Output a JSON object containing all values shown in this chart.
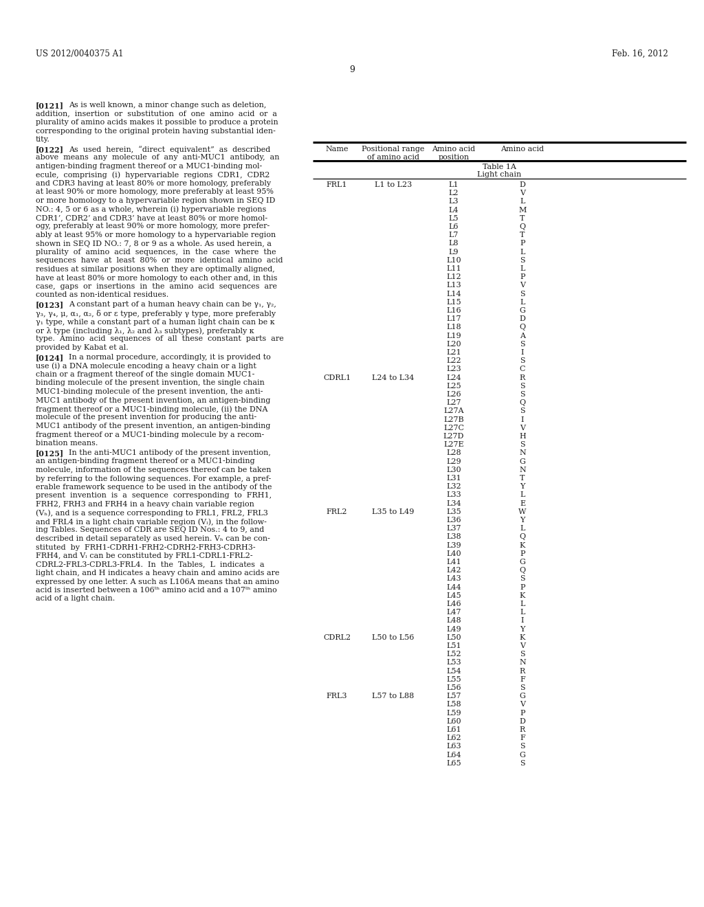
{
  "header_left": "US 2012/0040375 A1",
  "header_right": "Feb. 16, 2012",
  "page_number": "9",
  "background_color": "#ffffff",
  "text_color": "#1a1a1a",
  "left_paragraphs": [
    {
      "tag": "[0121]",
      "lines": [
        "As is well known, a minor change such as deletion,",
        "addition,  insertion  or  substitution  of  one  amino  acid  or  a",
        "plurality of amino acids makes it possible to produce a protein",
        "corresponding to the original protein having substantial iden-",
        "tity."
      ]
    },
    {
      "tag": "[0122]",
      "lines": [
        "As  used  herein,  “direct  equivalent”  as  described",
        "above  means  any  molecule  of  any  anti-MUC1  antibody,  an",
        "antigen-binding fragment thereof or a MUC1-binding mol-",
        "ecule,  comprising  (i)  hypervariable  regions  CDR1,  CDR2",
        "and CDR3 having at least 80% or more homology, preferably",
        "at least 90% or more homology, more preferably at least 95%",
        "or more homology to a hypervariable region shown in SEQ ID",
        "NO.: 4, 5 or 6 as a whole, wherein (i) hypervariable regions",
        "CDR1’, CDR2’ and CDR3’ have at least 80% or more homol-",
        "ogy, preferably at least 90% or more homology, more prefer-",
        "ably at least 95% or more homology to a hypervariable region",
        "shown in SEQ ID NO.: 7, 8 or 9 as a whole. As used herein, a",
        "plurality  of  amino  acid  sequences,  in  the  case  where  the",
        "sequences  have  at  least  80%  or  more  identical  amino  acid",
        "residues at similar positions when they are optimally aligned,",
        "have at least 80% or more homology to each other and, in this",
        "case,  gaps  or  insertions  in  the  amino  acid  sequences  are",
        "counted as non-identical residues."
      ]
    },
    {
      "tag": "[0123]",
      "lines": [
        "A constant part of a human heavy chain can be γ₁, γ₂,",
        "γ₃, γ₄, μ, α₁, α₂, δ or ε type, preferably γ type, more preferably",
        "γ₁ type, while a constant part of a human light chain can be κ",
        "or λ type (including λ₁, λ₂ and λ₃ subtypes), preferably κ",
        "type.  Amino  acid  sequences  of  all  these  constant  parts  are",
        "provided by Kabat et al."
      ]
    },
    {
      "tag": "[0124]",
      "lines": [
        "In a normal procedure, accordingly, it is provided to",
        "use (i) a DNA molecule encoding a heavy chain or a light",
        "chain or a fragment thereof of the single domain MUC1-",
        "binding molecule of the present invention, the single chain",
        "MUC1-binding molecule of the present invention, the anti-",
        "MUC1 antibody of the present invention, an antigen-binding",
        "fragment thereof or a MUC1-binding molecule, (ii) the DNA",
        "molecule of the present invention for producing the anti-",
        "MUC1 antibody of the present invention, an antigen-binding",
        "fragment thereof or a MUC1-binding molecule by a recom-",
        "bination means."
      ]
    },
    {
      "tag": "[0125]",
      "lines": [
        "In the anti-MUC1 antibody of the present invention,",
        "an antigen-binding fragment thereof or a MUC1-binding",
        "molecule, information of the sequences thereof can be taken",
        "by referring to the following sequences. For example, a pref-",
        "erable framework sequence to be used in the antibody of the",
        "present  invention  is  a  sequence  corresponding  to  FRH1,",
        "FRH2, FRH3 and FRH4 in a heavy chain variable region",
        "(Vₕ), and is a sequence corresponding to FRL1, FRL2, FRL3",
        "and FRL4 in a light chain variable region (Vₗ), in the follow-",
        "ing Tables. Sequences of CDR are SEQ ID Nos.: 4 to 9, and",
        "described in detail separately as used herein. Vₕ can be con-",
        "stituted  by  FRH1-CDRH1-FRH2-CDRH2-FRH3-CDRH3-",
        "FRH4, and Vₗ can be constituted by FRL1-CDRL1-FRL2-",
        "CDRL2-FRL3-CDRL3-FRL4.  In  the  Tables,  L  indicates  a",
        "light chain, and H indicates a heavy chain and amino acids are",
        "expressed by one letter. A such as L106A means that an amino",
        "acid is inserted between a 106ᵗʰ amino acid and a 107ᵗʰ amino",
        "acid of a light chain."
      ]
    }
  ],
  "table_col_headers": [
    "Name",
    "Positional range\nof amino acid",
    "Amino acid\nposition",
    "Amino acid"
  ],
  "table_title_line1": "Table 1A",
  "table_title_line2": "Light chain",
  "table_data": [
    [
      "FRL1",
      "L1 to L23",
      "L1",
      "D"
    ],
    [
      "",
      "",
      "L2",
      "V"
    ],
    [
      "",
      "",
      "L3",
      "L"
    ],
    [
      "",
      "",
      "L4",
      "M"
    ],
    [
      "",
      "",
      "L5",
      "T"
    ],
    [
      "",
      "",
      "L6",
      "Q"
    ],
    [
      "",
      "",
      "L7",
      "T"
    ],
    [
      "",
      "",
      "L8",
      "P"
    ],
    [
      "",
      "",
      "L9",
      "L"
    ],
    [
      "",
      "",
      "L10",
      "S"
    ],
    [
      "",
      "",
      "L11",
      "L"
    ],
    [
      "",
      "",
      "L12",
      "P"
    ],
    [
      "",
      "",
      "L13",
      "V"
    ],
    [
      "",
      "",
      "L14",
      "S"
    ],
    [
      "",
      "",
      "L15",
      "L"
    ],
    [
      "",
      "",
      "L16",
      "G"
    ],
    [
      "",
      "",
      "L17",
      "D"
    ],
    [
      "",
      "",
      "L18",
      "Q"
    ],
    [
      "",
      "",
      "L19",
      "A"
    ],
    [
      "",
      "",
      "L20",
      "S"
    ],
    [
      "",
      "",
      "L21",
      "I"
    ],
    [
      "",
      "",
      "L22",
      "S"
    ],
    [
      "",
      "",
      "L23",
      "C"
    ],
    [
      "CDRL1",
      "L24 to L34",
      "L24",
      "R"
    ],
    [
      "",
      "",
      "L25",
      "S"
    ],
    [
      "",
      "",
      "L26",
      "S"
    ],
    [
      "",
      "",
      "L27",
      "Q"
    ],
    [
      "",
      "",
      "L27A",
      "S"
    ],
    [
      "",
      "",
      "L27B",
      "I"
    ],
    [
      "",
      "",
      "L27C",
      "V"
    ],
    [
      "",
      "",
      "L27D",
      "H"
    ],
    [
      "",
      "",
      "L27E",
      "S"
    ],
    [
      "",
      "",
      "L28",
      "N"
    ],
    [
      "",
      "",
      "L29",
      "G"
    ],
    [
      "",
      "",
      "L30",
      "N"
    ],
    [
      "",
      "",
      "L31",
      "T"
    ],
    [
      "",
      "",
      "L32",
      "Y"
    ],
    [
      "",
      "",
      "L33",
      "L"
    ],
    [
      "",
      "",
      "L34",
      "E"
    ],
    [
      "FRL2",
      "L35 to L49",
      "L35",
      "W"
    ],
    [
      "",
      "",
      "L36",
      "Y"
    ],
    [
      "",
      "",
      "L37",
      "L"
    ],
    [
      "",
      "",
      "L38",
      "Q"
    ],
    [
      "",
      "",
      "L39",
      "K"
    ],
    [
      "",
      "",
      "L40",
      "P"
    ],
    [
      "",
      "",
      "L41",
      "G"
    ],
    [
      "",
      "",
      "L42",
      "Q"
    ],
    [
      "",
      "",
      "L43",
      "S"
    ],
    [
      "",
      "",
      "L44",
      "P"
    ],
    [
      "",
      "",
      "L45",
      "K"
    ],
    [
      "",
      "",
      "L46",
      "L"
    ],
    [
      "",
      "",
      "L47",
      "L"
    ],
    [
      "",
      "",
      "L48",
      "I"
    ],
    [
      "",
      "",
      "L49",
      "Y"
    ],
    [
      "CDRL2",
      "L50 to L56",
      "L50",
      "K"
    ],
    [
      "",
      "",
      "L51",
      "V"
    ],
    [
      "",
      "",
      "L52",
      "S"
    ],
    [
      "",
      "",
      "L53",
      "N"
    ],
    [
      "",
      "",
      "L54",
      "R"
    ],
    [
      "",
      "",
      "L55",
      "F"
    ],
    [
      "",
      "",
      "L56",
      "S"
    ],
    [
      "FRL3",
      "L57 to L88",
      "L57",
      "G"
    ],
    [
      "",
      "",
      "L58",
      "V"
    ],
    [
      "",
      "",
      "L59",
      "P"
    ],
    [
      "",
      "",
      "L60",
      "D"
    ],
    [
      "",
      "",
      "L61",
      "R"
    ],
    [
      "",
      "",
      "L62",
      "F"
    ],
    [
      "",
      "",
      "L63",
      "S"
    ],
    [
      "",
      "",
      "L64",
      "G"
    ],
    [
      "",
      "",
      "L65",
      "S"
    ]
  ]
}
